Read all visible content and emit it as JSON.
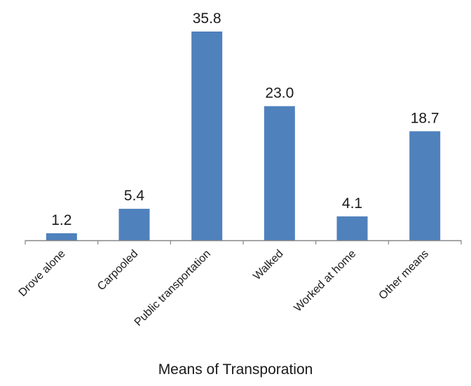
{
  "colors": {
    "bar": "#4f81bd",
    "axis": "#868686",
    "text": "#1a1a1a",
    "background": "#ffffff"
  },
  "chart_data": {
    "type": "bar",
    "categories": [
      "Drove alone",
      "Carpooled",
      "Public transportation",
      "Walked",
      "Worked at home",
      "Other means"
    ],
    "values": [
      1.2,
      5.4,
      35.8,
      23.0,
      4.1,
      18.7
    ],
    "data_labels": [
      "1.2",
      "5.4",
      "35.8",
      "23.0",
      "4.1",
      "18.7"
    ],
    "title": "",
    "xlabel": "Means of Transporation",
    "ylabel": "",
    "ylim": [
      0,
      40
    ],
    "grid": false,
    "legend": "none"
  }
}
